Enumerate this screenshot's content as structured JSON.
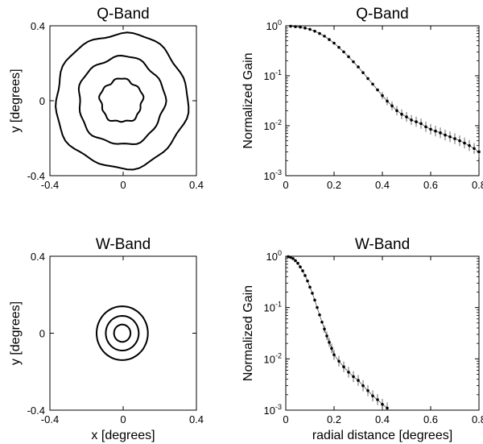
{
  "chart_data": [
    {
      "type": "contour",
      "title": "Q-Band",
      "xlabel": "",
      "ylabel": "y [degrees]",
      "xlim": [
        -0.4,
        0.4
      ],
      "ylim": [
        -0.4,
        0.4
      ],
      "xticks": [
        "-0.4",
        "0",
        "0.4"
      ],
      "yticks": [
        "-0.4",
        "0",
        "0.4"
      ],
      "contours": [
        {
          "cx": -0.01,
          "cy": 0.0,
          "r": 0.115,
          "wobble": 0.01
        },
        {
          "cx": -0.01,
          "cy": 0.0,
          "r": 0.235,
          "wobble": 0.012
        },
        {
          "cx": -0.01,
          "cy": 0.0,
          "r": 0.36,
          "wobble": 0.014
        }
      ]
    },
    {
      "type": "scatter",
      "title": "Q-Band",
      "xlabel": "",
      "ylabel": "Normalized Gain",
      "xlim": [
        0,
        0.8
      ],
      "ylim": [
        0.001,
        1
      ],
      "yscale": "log",
      "xticks": [
        "0",
        "0.2",
        "0.4",
        "0.6",
        "0.8"
      ],
      "yticks": [
        {
          "base": "10",
          "exp": "0"
        },
        {
          "base": "10",
          "exp": "-1"
        },
        {
          "base": "10",
          "exp": "-2"
        },
        {
          "base": "10",
          "exp": "-3"
        }
      ],
      "points": [
        [
          0.02,
          0.98
        ],
        [
          0.04,
          0.96
        ],
        [
          0.06,
          0.94
        ],
        [
          0.08,
          0.9
        ],
        [
          0.1,
          0.85
        ],
        [
          0.12,
          0.78
        ],
        [
          0.14,
          0.7
        ],
        [
          0.16,
          0.62
        ],
        [
          0.18,
          0.53
        ],
        [
          0.2,
          0.45
        ],
        [
          0.22,
          0.37
        ],
        [
          0.24,
          0.3
        ],
        [
          0.26,
          0.24
        ],
        [
          0.28,
          0.19
        ],
        [
          0.3,
          0.15
        ],
        [
          0.32,
          0.115
        ],
        [
          0.34,
          0.088
        ],
        [
          0.36,
          0.068
        ],
        [
          0.38,
          0.052
        ],
        [
          0.4,
          0.04
        ],
        [
          0.42,
          0.031
        ],
        [
          0.44,
          0.025
        ],
        [
          0.46,
          0.02
        ],
        [
          0.48,
          0.017
        ],
        [
          0.5,
          0.015
        ],
        [
          0.52,
          0.013
        ],
        [
          0.54,
          0.012
        ],
        [
          0.56,
          0.011
        ],
        [
          0.58,
          0.0095
        ],
        [
          0.6,
          0.0085
        ],
        [
          0.62,
          0.0078
        ],
        [
          0.64,
          0.0072
        ],
        [
          0.66,
          0.0065
        ],
        [
          0.68,
          0.006
        ],
        [
          0.7,
          0.0055
        ],
        [
          0.72,
          0.005
        ],
        [
          0.74,
          0.0045
        ],
        [
          0.76,
          0.004
        ],
        [
          0.78,
          0.0035
        ],
        [
          0.8,
          0.003
        ]
      ]
    },
    {
      "type": "contour",
      "title": "W-Band",
      "xlabel": "x [degrees]",
      "ylabel": "y [degrees]",
      "xlim": [
        -0.4,
        0.4
      ],
      "ylim": [
        -0.4,
        0.4
      ],
      "xticks": [
        "-0.4",
        "0",
        "0.4"
      ],
      "yticks": [
        "-0.4",
        "0",
        "0.4"
      ],
      "contours": [
        {
          "cx": -0.005,
          "cy": 0.0,
          "r": 0.045,
          "wobble": 0.0
        },
        {
          "cx": -0.005,
          "cy": 0.0,
          "r": 0.09,
          "wobble": 0.0
        },
        {
          "cx": -0.005,
          "cy": 0.0,
          "r": 0.14,
          "wobble": 0.0
        }
      ]
    },
    {
      "type": "scatter",
      "title": "W-Band",
      "xlabel": "radial distance [degrees]",
      "ylabel": "Normalized Gain",
      "xlim": [
        0,
        0.8
      ],
      "ylim": [
        0.001,
        1
      ],
      "yscale": "log",
      "xticks": [
        "0",
        "0.2",
        "0.4",
        "0.6",
        "0.8"
      ],
      "yticks": [
        {
          "base": "10",
          "exp": "0"
        },
        {
          "base": "10",
          "exp": "-1"
        },
        {
          "base": "10",
          "exp": "-2"
        },
        {
          "base": "10",
          "exp": "-3"
        }
      ],
      "points": [
        [
          0.01,
          0.98
        ],
        [
          0.02,
          0.95
        ],
        [
          0.03,
          0.9
        ],
        [
          0.04,
          0.82
        ],
        [
          0.05,
          0.73
        ],
        [
          0.06,
          0.62
        ],
        [
          0.07,
          0.52
        ],
        [
          0.08,
          0.42
        ],
        [
          0.09,
          0.33
        ],
        [
          0.1,
          0.25
        ],
        [
          0.11,
          0.19
        ],
        [
          0.12,
          0.14
        ],
        [
          0.13,
          0.1
        ],
        [
          0.14,
          0.072
        ],
        [
          0.15,
          0.052
        ],
        [
          0.16,
          0.038
        ],
        [
          0.17,
          0.028
        ],
        [
          0.18,
          0.021
        ],
        [
          0.19,
          0.016
        ],
        [
          0.2,
          0.012
        ],
        [
          0.22,
          0.009
        ],
        [
          0.24,
          0.007
        ],
        [
          0.26,
          0.0055
        ],
        [
          0.28,
          0.0045
        ],
        [
          0.3,
          0.0038
        ],
        [
          0.32,
          0.003
        ],
        [
          0.34,
          0.0024
        ],
        [
          0.36,
          0.0019
        ],
        [
          0.38,
          0.0016
        ],
        [
          0.4,
          0.0013
        ],
        [
          0.42,
          0.0011
        ]
      ]
    }
  ]
}
